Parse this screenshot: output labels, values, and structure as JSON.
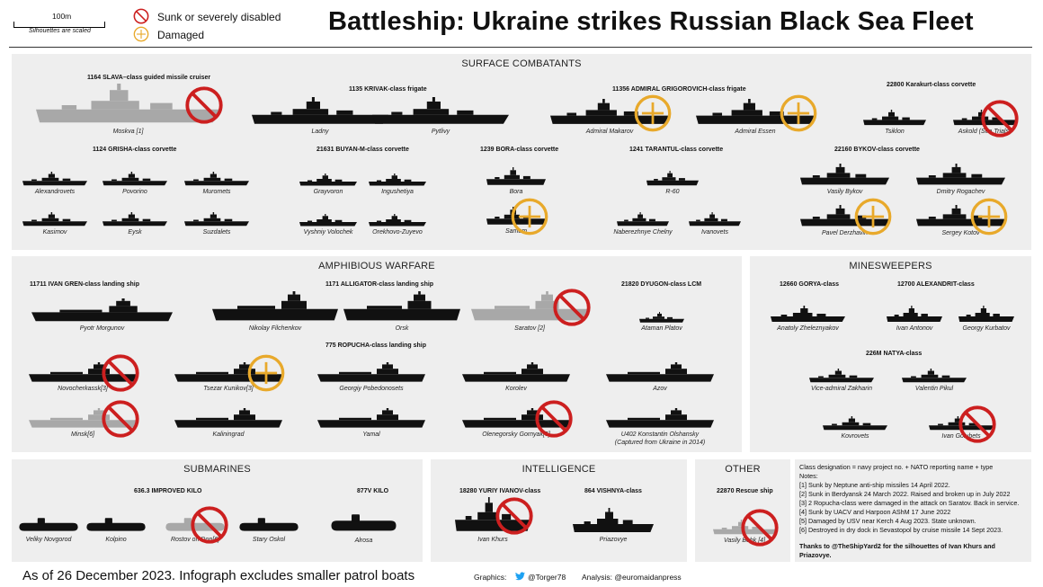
{
  "title": "Battleship: Ukraine strikes Russian Black Sea Fleet",
  "legend": {
    "scale_label": "100m",
    "scale_note": "Silhouettes are scaled",
    "sunk_label": "Sunk or severely disabled",
    "damaged_label": "Damaged",
    "sunk_color": "#cc1f1f",
    "damaged_color": "#e8a92b"
  },
  "panels": {
    "surface": "SURFACE COMBATANTS",
    "amphibious": "AMPHIBIOUS WARFARE",
    "minesweepers": "MINESWEEPERS",
    "submarines": "SUBMARINES",
    "intelligence": "INTELLIGENCE",
    "other": "OTHER"
  },
  "classes": {
    "slava": "1164 SLAVA–class guided missile cruiser",
    "krivak": "1135 KRIVAK-class frigate",
    "grigorovich": "11356 ADMIRAL GRIGOROVICH-class frigate",
    "karakurt": "22800 Karakurt-class corvette",
    "grisha": "1124 GRISHA-class corvette",
    "buyan": "21631 BUYAN-M-class corvette",
    "bora": "1239 BORA-class corvette",
    "tarantul": "1241 TARANTUL-class corvette",
    "bykov": "22160 BYKOV-class corvette",
    "ivan_gren": "11711 IVAN GREN-class landing ship",
    "alligator": "1171 ALLIGATOR-class landing ship",
    "dyugon": "21820 DYUGON-class LCM",
    "ropucha": "775 ROPUCHA-class landing ship",
    "gorya": "12660 GORYA-class",
    "alexandrit": "12700 ALEXANDRIT-class",
    "natya": "226M NATYA-class",
    "kilo": "636.3 IMPROVED KILO",
    "kilo877": "877V KILO",
    "ivanov": "18280 YURIY IVANOV-class",
    "vishnya": "864 VISHNYA-class",
    "rescue": "22870 Rescue ship"
  },
  "ships": {
    "moskva": "Moskva [1]",
    "ladny": "Ladny",
    "pytlivy": "Pytlivy",
    "makarov": "Admiral Makarov",
    "essen": "Admiral Essen",
    "tsiklon": "Tsiklon",
    "askold": "Askold (Sea Trials)",
    "alexandrovets": "Alexandrovets",
    "povorino": "Povorino",
    "muromets": "Muromets",
    "kasimov": "Kasimov",
    "eysk": "Eysk",
    "suzdalets": "Suzdalets",
    "grayvoron": "Grayvoron",
    "ingushetiya": "Ingushetiya",
    "vyshniy": "Vyshniy Volochek",
    "orekhovo": "Orekhovo-Zuyevo",
    "bora": "Bora",
    "samum": "Samum",
    "r60": "R-60",
    "naberezhnye": "Naberezhnye Chelny",
    "ivanovets": "Ivanovets",
    "bykov": "Vasily Bykov",
    "rogachev": "Dmitry Rogachev",
    "derzhavin": "Pavel Derzhavin",
    "kotov": "Sergey Kotov",
    "morgunov": "Pyotr Morgunov",
    "filchenkov": "Nikolay Filchenkov",
    "orsk": "Orsk",
    "saratov": "Saratov [2]",
    "platov": "Ataman Platov",
    "novocherkassk": "Novocherkassk[3]",
    "kunikov": "Tsezar Kunikov[3]",
    "pobedonosets": "Georgiy Pobedonosets",
    "korolev": "Korolev",
    "azov": "Azov",
    "minsk": "Minsk[6]",
    "kaliningrad": "Kaliningrad",
    "yamal": "Yamal",
    "olenegorsky": "Olenegorsky Gornyak[5]",
    "olshansky": "U402 Konstantin Olshansky",
    "olshansky_note": "(Captured from Ukraine in 2014)",
    "zheleznyakov": "Anatoly Zheleznyakov",
    "antonov": "Ivan Antonov",
    "kurbatov": "Georgy Kurbatov",
    "zakharin": "Vice-admiral Zakharin",
    "pikul": "Valentin Pikul",
    "kovrovets": "Kovrovets",
    "golubets": "Ivan Golubets",
    "novgorod": "Veliky Novgorod",
    "kolpino": "Kolpino",
    "rostov": "Rostov on Don[6]",
    "oskol": "Stary Oskol",
    "alrosa": "Alrosa",
    "khurs": "Ivan Khurs",
    "priazovye": "Priazovye",
    "behk": "Vasily Behk [4]"
  },
  "notes": {
    "header": "Class designation = navy project no. + NATO reporting name + type",
    "label": "Notes:",
    "n1": "[1] Sunk by Neptune anti-ship missiles 14 April 2022.",
    "n2": "[2] Sunk in Berdyansk 24 March 2022. Raised and broken up in July 2022",
    "n3": "[3] 2 Ropucha-class were damaged in the attack on Saratov. Back in service.",
    "n4": "[4] Sunk by UACV and Harpoon AShM 17 June 2022",
    "n5": "[5] Damaged by USV near Kerch 4 Aug 2023. State unknown.",
    "n6": "[6] Destroyed in dry dock in Sevastopol by cruise missile 14 Sept 2023.",
    "thanks": "Thanks to @TheShipYard2 for the silhouettes of Ivan Khurs and Priazovye."
  },
  "footer": {
    "asof": "As of 26 December 2023. Infograph excludes smaller patrol boats",
    "graphics_label": "Graphics:",
    "graphics_handle": "@Torger78",
    "analysis": "Analysis: @euromaidanpress"
  },
  "icons": [
    "sunk-icon",
    "damaged-icon",
    "twitter-icon"
  ]
}
